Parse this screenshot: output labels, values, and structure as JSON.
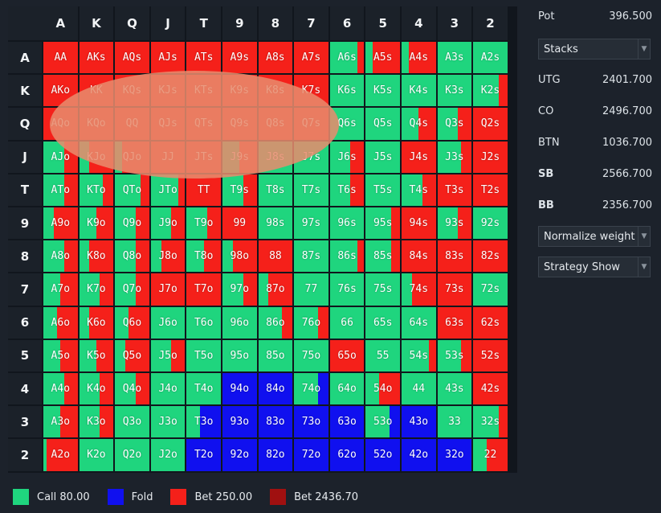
{
  "ranks": [
    "A",
    "K",
    "Q",
    "J",
    "T",
    "9",
    "8",
    "7",
    "6",
    "5",
    "4",
    "3",
    "2"
  ],
  "colors": {
    "call": "#1fd57e",
    "fold": "#1010ef",
    "bet": "#f5201a",
    "bet_big": "#a01010"
  },
  "cells": [
    [
      [
        "AA",
        [
          0,
          0,
          1
        ]
      ],
      [
        "AKs",
        [
          0,
          0,
          1
        ]
      ],
      [
        "AQs",
        [
          0,
          0,
          1
        ]
      ],
      [
        "AJs",
        [
          0,
          0,
          1
        ]
      ],
      [
        "ATs",
        [
          0,
          0,
          1
        ]
      ],
      [
        "A9s",
        [
          0,
          0,
          1
        ]
      ],
      [
        "A8s",
        [
          0,
          0,
          1
        ]
      ],
      [
        "A7s",
        [
          0,
          0,
          1
        ]
      ],
      [
        "A6s",
        [
          0.8,
          0,
          0.2
        ]
      ],
      [
        "A5s",
        [
          0.2,
          0,
          0.8
        ]
      ],
      [
        "A4s",
        [
          0.2,
          0,
          0.8
        ]
      ],
      [
        "A3s",
        [
          1,
          0,
          0
        ]
      ],
      [
        "A2s",
        [
          1,
          0,
          0
        ]
      ]
    ],
    [
      [
        "AKo",
        [
          0,
          0,
          1
        ]
      ],
      [
        "KK",
        [
          0,
          0,
          1
        ]
      ],
      [
        "KQs",
        [
          0,
          0,
          1
        ]
      ],
      [
        "KJs",
        [
          0,
          0,
          1
        ]
      ],
      [
        "KTs",
        [
          0,
          0,
          1
        ]
      ],
      [
        "K9s",
        [
          0,
          0,
          1
        ]
      ],
      [
        "K8s",
        [
          0,
          0,
          1
        ]
      ],
      [
        "K7s",
        [
          0,
          0,
          1
        ]
      ],
      [
        "K6s",
        [
          1,
          0,
          0
        ]
      ],
      [
        "K5s",
        [
          1,
          0,
          0
        ]
      ],
      [
        "K4s",
        [
          1,
          0,
          0
        ]
      ],
      [
        "K3s",
        [
          1,
          0,
          0
        ]
      ],
      [
        "K2s",
        [
          0.75,
          0,
          0.25
        ]
      ]
    ],
    [
      [
        "AQo",
        [
          0,
          0,
          1
        ]
      ],
      [
        "KQo",
        [
          0,
          0,
          1
        ]
      ],
      [
        "QQ",
        [
          0,
          0,
          1
        ]
      ],
      [
        "QJs",
        [
          0,
          0,
          1
        ]
      ],
      [
        "QTs",
        [
          0,
          0,
          1
        ]
      ],
      [
        "Q9s",
        [
          0,
          0,
          1
        ]
      ],
      [
        "Q8s",
        [
          0,
          0,
          1
        ]
      ],
      [
        "Q7s",
        [
          0,
          0,
          1
        ]
      ],
      [
        "Q6s",
        [
          1,
          0,
          0
        ]
      ],
      [
        "Q5s",
        [
          1,
          0,
          0
        ]
      ],
      [
        "Q4s",
        [
          0.5,
          0,
          0.5
        ]
      ],
      [
        "Q3s",
        [
          0.6,
          0,
          0.4
        ]
      ],
      [
        "Q2s",
        [
          0,
          0,
          1
        ]
      ]
    ],
    [
      [
        "AJo",
        [
          0.6,
          0,
          0.4
        ]
      ],
      [
        "KJo",
        [
          0.3,
          0,
          0.7
        ]
      ],
      [
        "QJo",
        [
          0.2,
          0,
          0.8
        ]
      ],
      [
        "JJ",
        [
          0,
          0,
          1
        ]
      ],
      [
        "JTs",
        [
          0,
          0,
          1
        ]
      ],
      [
        "J9s",
        [
          0.5,
          0,
          0.5
        ]
      ],
      [
        "J8s",
        [
          1,
          0,
          0
        ]
      ],
      [
        "J7s",
        [
          1,
          0,
          0
        ]
      ],
      [
        "J6s",
        [
          0.6,
          0,
          0.4
        ]
      ],
      [
        "J5s",
        [
          1,
          0,
          0
        ]
      ],
      [
        "J4s",
        [
          0,
          0,
          1
        ]
      ],
      [
        "J3s",
        [
          0.7,
          0,
          0.3
        ]
      ],
      [
        "J2s",
        [
          0,
          0,
          1
        ]
      ]
    ],
    [
      [
        "ATo",
        [
          0.6,
          0,
          0.4
        ]
      ],
      [
        "KTo",
        [
          0.7,
          0,
          0.3
        ]
      ],
      [
        "QTo",
        [
          0.75,
          0,
          0.25
        ]
      ],
      [
        "JTo",
        [
          0.8,
          0,
          0.2
        ]
      ],
      [
        "TT",
        [
          0,
          0,
          1
        ]
      ],
      [
        "T9s",
        [
          0.6,
          0,
          0.4
        ]
      ],
      [
        "T8s",
        [
          1,
          0,
          0
        ]
      ],
      [
        "T7s",
        [
          1,
          0,
          0
        ]
      ],
      [
        "T6s",
        [
          0.6,
          0,
          0.4
        ]
      ],
      [
        "T5s",
        [
          1,
          0,
          0
        ]
      ],
      [
        "T4s",
        [
          0.6,
          0,
          0.4
        ]
      ],
      [
        "T3s",
        [
          0,
          0,
          1
        ]
      ],
      [
        "T2s",
        [
          0,
          0,
          1
        ]
      ]
    ],
    [
      [
        "A9o",
        [
          0.3,
          0,
          0.7
        ]
      ],
      [
        "K9o",
        [
          0.5,
          0,
          0.5
        ]
      ],
      [
        "Q9o",
        [
          0.6,
          0,
          0.4
        ]
      ],
      [
        "J9o",
        [
          0.6,
          0,
          0.4
        ]
      ],
      [
        "T9o",
        [
          0.6,
          0,
          0.4
        ]
      ],
      [
        "99",
        [
          0,
          0,
          1
        ]
      ],
      [
        "98s",
        [
          1,
          0,
          0
        ]
      ],
      [
        "97s",
        [
          1,
          0,
          0
        ]
      ],
      [
        "96s",
        [
          1,
          0,
          0
        ]
      ],
      [
        "95s",
        [
          0.75,
          0,
          0.25
        ]
      ],
      [
        "94s",
        [
          0,
          0,
          1
        ]
      ],
      [
        "93s",
        [
          0.6,
          0,
          0.4
        ]
      ],
      [
        "92s",
        [
          1,
          0,
          0
        ]
      ]
    ],
    [
      [
        "A8o",
        [
          0.6,
          0,
          0.4
        ]
      ],
      [
        "K8o",
        [
          0.3,
          0,
          0.7
        ]
      ],
      [
        "Q8o",
        [
          0.6,
          0,
          0.4
        ]
      ],
      [
        "J8o",
        [
          0.3,
          0,
          0.7
        ]
      ],
      [
        "T8o",
        [
          0.5,
          0,
          0.5
        ]
      ],
      [
        "98o",
        [
          0.3,
          0,
          0.7
        ]
      ],
      [
        "88",
        [
          0,
          0,
          1
        ]
      ],
      [
        "87s",
        [
          1,
          0,
          0
        ]
      ],
      [
        "86s",
        [
          0.8,
          0,
          0.2
        ]
      ],
      [
        "85s",
        [
          0.75,
          0,
          0.25
        ]
      ],
      [
        "84s",
        [
          0,
          0,
          1
        ]
      ],
      [
        "83s",
        [
          0,
          0,
          1
        ]
      ],
      [
        "82s",
        [
          0,
          0,
          1
        ]
      ]
    ],
    [
      [
        "A7o",
        [
          0.5,
          0,
          0.5
        ]
      ],
      [
        "K7o",
        [
          0.6,
          0,
          0.4
        ]
      ],
      [
        "Q7o",
        [
          0.6,
          0,
          0.4
        ]
      ],
      [
        "J7o",
        [
          0,
          0,
          1
        ]
      ],
      [
        "T7o",
        [
          0,
          0,
          1
        ]
      ],
      [
        "97o",
        [
          0.6,
          0,
          0.4
        ]
      ],
      [
        "87o",
        [
          0.3,
          0,
          0.7
        ]
      ],
      [
        "77",
        [
          1,
          0,
          0
        ]
      ],
      [
        "76s",
        [
          1,
          0,
          0
        ]
      ],
      [
        "75s",
        [
          1,
          0,
          0
        ]
      ],
      [
        "74s",
        [
          0.3,
          0,
          0.7
        ]
      ],
      [
        "73s",
        [
          0,
          0,
          1
        ]
      ],
      [
        "72s",
        [
          1,
          0,
          0
        ]
      ]
    ],
    [
      [
        "A6o",
        [
          0.4,
          0,
          0.6
        ]
      ],
      [
        "K6o",
        [
          0.3,
          0,
          0.7
        ]
      ],
      [
        "Q6o",
        [
          0.4,
          0,
          0.6
        ]
      ],
      [
        "J6o",
        [
          1,
          0,
          0
        ]
      ],
      [
        "T6o",
        [
          1,
          0,
          0
        ]
      ],
      [
        "96o",
        [
          1,
          0,
          0
        ]
      ],
      [
        "86o",
        [
          0.7,
          0,
          0.3
        ]
      ],
      [
        "76o",
        [
          0.7,
          0,
          0.3
        ]
      ],
      [
        "66",
        [
          1,
          0,
          0
        ]
      ],
      [
        "65s",
        [
          1,
          0,
          0
        ]
      ],
      [
        "64s",
        [
          1,
          0,
          0
        ]
      ],
      [
        "63s",
        [
          0,
          0,
          1
        ]
      ],
      [
        "62s",
        [
          0,
          0,
          1
        ]
      ]
    ],
    [
      [
        "A5o",
        [
          0.5,
          0,
          0.5
        ]
      ],
      [
        "K5o",
        [
          0.5,
          0,
          0.5
        ]
      ],
      [
        "Q5o",
        [
          0.3,
          0,
          0.7
        ]
      ],
      [
        "J5o",
        [
          0.6,
          0,
          0.4
        ]
      ],
      [
        "T5o",
        [
          1,
          0,
          0
        ]
      ],
      [
        "95o",
        [
          1,
          0,
          0
        ]
      ],
      [
        "85o",
        [
          1,
          0,
          0
        ]
      ],
      [
        "75o",
        [
          1,
          0,
          0
        ]
      ],
      [
        "65o",
        [
          0,
          0,
          1
        ]
      ],
      [
        "55",
        [
          1,
          0,
          0
        ]
      ],
      [
        "54s",
        [
          0.8,
          0,
          0.2
        ]
      ],
      [
        "53s",
        [
          0.7,
          0,
          0.3
        ]
      ],
      [
        "52s",
        [
          0,
          0,
          1
        ]
      ]
    ],
    [
      [
        "A4o",
        [
          0.6,
          0,
          0.4
        ]
      ],
      [
        "K4o",
        [
          0.6,
          0,
          0.4
        ]
      ],
      [
        "Q4o",
        [
          0.6,
          0,
          0.4
        ]
      ],
      [
        "J4o",
        [
          1,
          0,
          0
        ]
      ],
      [
        "T4o",
        [
          1,
          0,
          0
        ]
      ],
      [
        "94o",
        [
          0,
          1,
          0
        ]
      ],
      [
        "84o",
        [
          0,
          1,
          0
        ]
      ],
      [
        "74o",
        [
          0.7,
          0.3,
          0
        ]
      ],
      [
        "64o",
        [
          1,
          0,
          0
        ]
      ],
      [
        "54o",
        [
          0.4,
          0,
          0.6
        ]
      ],
      [
        "44",
        [
          1,
          0,
          0
        ]
      ],
      [
        "43s",
        [
          1,
          0,
          0
        ]
      ],
      [
        "42s",
        [
          0,
          0,
          1
        ]
      ]
    ],
    [
      [
        "A3o",
        [
          0.5,
          0,
          0.5
        ]
      ],
      [
        "K3o",
        [
          0.6,
          0,
          0.4
        ]
      ],
      [
        "Q3o",
        [
          1,
          0,
          0
        ]
      ],
      [
        "J3o",
        [
          1,
          0,
          0
        ]
      ],
      [
        "T3o",
        [
          0.4,
          0.6,
          0
        ]
      ],
      [
        "93o",
        [
          0,
          1,
          0
        ]
      ],
      [
        "83o",
        [
          0,
          1,
          0
        ]
      ],
      [
        "73o",
        [
          0,
          1,
          0
        ]
      ],
      [
        "63o",
        [
          0,
          1,
          0
        ]
      ],
      [
        "53o",
        [
          0.7,
          0.3,
          0
        ]
      ],
      [
        "43o",
        [
          0,
          1,
          0
        ]
      ],
      [
        "33",
        [
          1,
          0,
          0
        ]
      ],
      [
        "32s",
        [
          0.75,
          0,
          0.25
        ]
      ]
    ],
    [
      [
        "A2o",
        [
          0.1,
          0,
          0.9
        ]
      ],
      [
        "K2o",
        [
          1,
          0,
          0
        ]
      ],
      [
        "Q2o",
        [
          1,
          0,
          0
        ]
      ],
      [
        "J2o",
        [
          1,
          0,
          0
        ]
      ],
      [
        "T2o",
        [
          0,
          1,
          0
        ]
      ],
      [
        "92o",
        [
          0,
          1,
          0
        ]
      ],
      [
        "82o",
        [
          0,
          1,
          0
        ]
      ],
      [
        "72o",
        [
          0,
          1,
          0
        ]
      ],
      [
        "62o",
        [
          0,
          1,
          0
        ]
      ],
      [
        "52o",
        [
          0,
          1,
          0
        ]
      ],
      [
        "42o",
        [
          0,
          1,
          0
        ]
      ],
      [
        "32o",
        [
          0,
          1,
          0
        ]
      ],
      [
        "22",
        [
          0.4,
          0,
          0.6
        ]
      ]
    ]
  ],
  "panel": {
    "pot_label": "Pot",
    "pot_value": "396.500",
    "stacks_dropdown": "Stacks",
    "players": [
      {
        "name": "UTG",
        "value": "2401.700",
        "bold": false
      },
      {
        "name": "CO",
        "value": "2496.700",
        "bold": false
      },
      {
        "name": "BTN",
        "value": "1036.700",
        "bold": false
      },
      {
        "name": "SB",
        "value": "2566.700",
        "bold": true
      },
      {
        "name": "BB",
        "value": "2356.700",
        "bold": true
      }
    ],
    "normalize_dropdown": "Normalize weight",
    "strategy_dropdown": "Strategy Show"
  },
  "legend": [
    {
      "label": "Call 80.00",
      "color": "#1fd57e"
    },
    {
      "label": "Fold",
      "color": "#1010ef"
    },
    {
      "label": "Bet 250.00",
      "color": "#f5201a"
    },
    {
      "label": "Bet 2436.70",
      "color": "#a01010"
    }
  ]
}
